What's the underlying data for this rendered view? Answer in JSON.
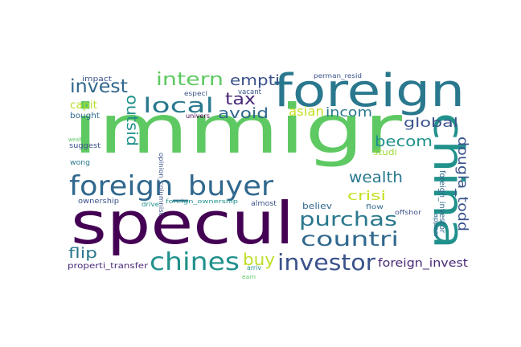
{
  "words": [
    {
      "text": "immigr",
      "color": "#5ec962"
    },
    {
      "text": "specul",
      "color": "#440154"
    },
    {
      "text": "foreign",
      "color": "#2a788e"
    },
    {
      "text": "china",
      "color": "#21918c"
    },
    {
      "text": "foreign_buyer",
      "color": "#31688e"
    },
    {
      "text": "chines",
      "color": "#21918c"
    },
    {
      "text": "investor",
      "color": "#3b528b"
    },
    {
      "text": "purchas",
      "color": "#2a788e"
    },
    {
      "text": "countri",
      "color": "#31688e"
    },
    {
      "text": "local",
      "color": "#2a788e"
    },
    {
      "text": "invest",
      "color": "#31688e"
    },
    {
      "text": "intern",
      "color": "#5ec962"
    },
    {
      "text": "empti",
      "color": "#3b528b"
    },
    {
      "text": "tax",
      "color": "#482878"
    },
    {
      "text": "avoid",
      "color": "#31688e"
    },
    {
      "text": "outsid",
      "color": "#21918c"
    },
    {
      "text": "buy",
      "color": "#bddf26"
    },
    {
      "text": "flip",
      "color": "#2a788e"
    },
    {
      "text": "wealth",
      "color": "#2a788e"
    },
    {
      "text": "crisi",
      "color": "#c5e021"
    },
    {
      "text": "becom",
      "color": "#21918c"
    },
    {
      "text": "global",
      "color": "#3b528b"
    },
    {
      "text": "douglа_todd",
      "color": "#3b528b"
    },
    {
      "text": "foreign_invest",
      "color": "#482878"
    },
    {
      "text": "asian",
      "color": "#c5e021"
    },
    {
      "text": "incom",
      "color": "#2a788e"
    },
    {
      "text": "capit",
      "color": "#b5de2b"
    },
    {
      "text": "bought",
      "color": "#31688e"
    },
    {
      "text": "properti_transfer",
      "color": "#482878"
    },
    {
      "text": "ownership",
      "color": "#3b528b"
    },
    {
      "text": "believ",
      "color": "#31688e"
    },
    {
      "text": "studi",
      "color": "#a0da39"
    },
    {
      "text": "foreign_investor",
      "color": "#31688e"
    },
    {
      "text": "impact",
      "color": "#3b528b"
    },
    {
      "text": "especi",
      "color": "#3b528b"
    },
    {
      "text": "perman_resid",
      "color": "#3b528b"
    },
    {
      "text": "univers",
      "color": "#440154"
    },
    {
      "text": "vacant",
      "color": "#3b528b"
    },
    {
      "text": "opinion_columnist",
      "color": "#3b528b"
    },
    {
      "text": "wealthi",
      "color": "#5ec962"
    },
    {
      "text": "suggest",
      "color": "#3b528b"
    },
    {
      "text": "wong",
      "color": "#2a788e"
    },
    {
      "text": "drive",
      "color": "#21918c"
    },
    {
      "text": "foreign_ownership",
      "color": "#21918c"
    },
    {
      "text": "almost",
      "color": "#3b528b"
    },
    {
      "text": "flow",
      "color": "#31688e"
    },
    {
      "text": "offshor",
      "color": "#3b528b"
    },
    {
      "text": "appear",
      "color": "#31688e"
    },
    {
      "text": "arriv",
      "color": "#21918c"
    },
    {
      "text": "earn",
      "color": "#5ec962"
    }
  ]
}
